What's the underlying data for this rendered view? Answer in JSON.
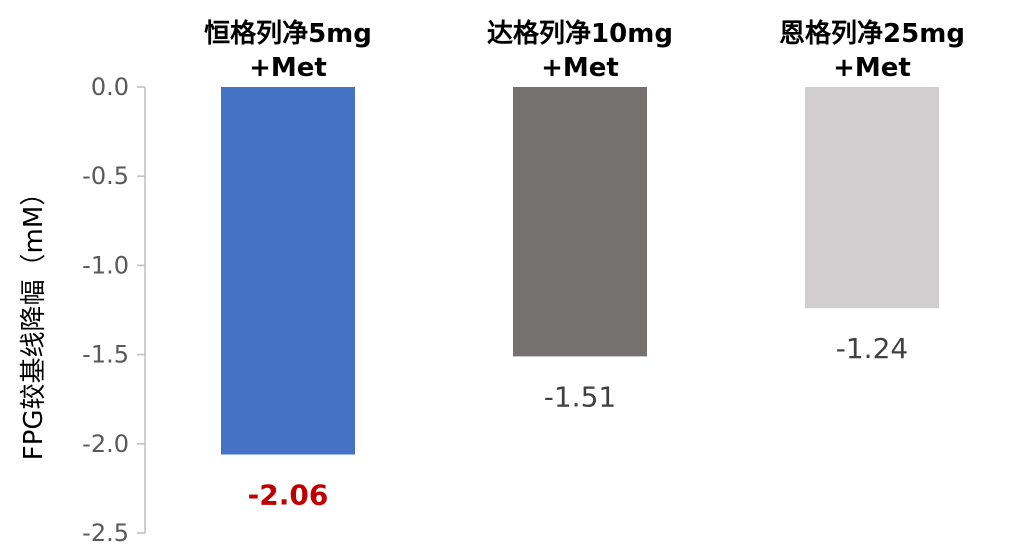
{
  "chart_data": {
    "type": "bar",
    "categories": [
      [
        "恒格列净5mg",
        "+Met"
      ],
      [
        "达格列净10mg",
        "+Met"
      ],
      [
        "恩格列净25mg",
        "+Met"
      ]
    ],
    "values": [
      -2.06,
      -1.51,
      -1.24
    ],
    "value_labels": [
      "-2.06",
      "-1.51",
      "-1.24"
    ],
    "bar_colors": [
      "#4472C4",
      "#767171",
      "#D0CECE"
    ],
    "value_label_colors": [
      "#C00000",
      "#404040",
      "#404040"
    ],
    "value_label_bold": [
      true,
      false,
      false
    ],
    "ylabel": "FPG较基线降幅（mM）",
    "ylim": [
      -2.5,
      0.0
    ],
    "yticks": [
      0.0,
      -0.5,
      -1.0,
      -1.5,
      -2.0,
      -2.5
    ],
    "ytick_labels": [
      "0.0",
      "-0.5",
      "-1.0",
      "-1.5",
      "-2.0",
      "-2.5"
    ],
    "grid": false,
    "legend": "none",
    "category_label_position": "top"
  }
}
